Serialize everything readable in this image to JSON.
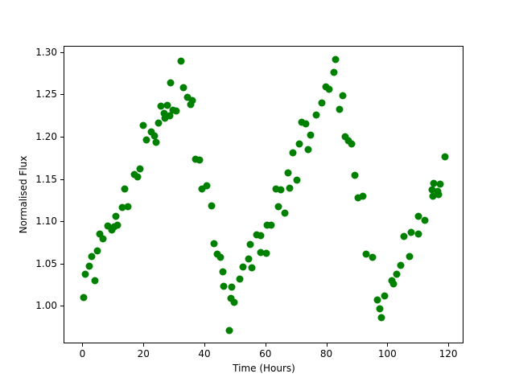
{
  "chart_data": {
    "type": "scatter",
    "title": "",
    "xlabel": "Time (Hours)",
    "ylabel": "Normalised Flux",
    "xlim": [
      -6.2,
      125.0
    ],
    "ylim": [
      0.9555,
      1.3075
    ],
    "xticks": [
      0,
      20,
      40,
      60,
      80,
      100,
      120
    ],
    "yticks": [
      1.0,
      1.05,
      1.1,
      1.15,
      1.2,
      1.25,
      1.3
    ],
    "ytick_decimals": 2,
    "grid": false,
    "legend": null,
    "marker": "circle",
    "marker_color": "#008000",
    "marker_diameter_px": 9,
    "background_color": "#ffffff",
    "spine_color": "#000000",
    "points": [
      [
        0.1,
        1.011
      ],
      [
        0.6,
        1.038
      ],
      [
        1.9,
        1.048
      ],
      [
        2.7,
        1.059
      ],
      [
        3.9,
        1.031
      ],
      [
        4.7,
        1.066
      ],
      [
        5.4,
        1.086
      ],
      [
        6.5,
        1.08
      ],
      [
        8.0,
        1.095
      ],
      [
        9.3,
        1.091
      ],
      [
        10.2,
        1.094
      ],
      [
        10.7,
        1.107
      ],
      [
        11.1,
        1.096
      ],
      [
        12.9,
        1.117
      ],
      [
        13.7,
        1.139
      ],
      [
        14.6,
        1.118
      ],
      [
        16.8,
        1.156
      ],
      [
        17.8,
        1.153
      ],
      [
        18.6,
        1.163
      ],
      [
        19.8,
        1.214
      ],
      [
        20.7,
        1.197
      ],
      [
        22.4,
        1.207
      ],
      [
        23.3,
        1.202
      ],
      [
        23.8,
        1.194
      ],
      [
        24.7,
        1.217
      ],
      [
        25.5,
        1.237
      ],
      [
        26.5,
        1.229
      ],
      [
        26.7,
        1.223
      ],
      [
        27.7,
        1.238
      ],
      [
        28.3,
        1.226
      ],
      [
        28.7,
        1.265
      ],
      [
        29.5,
        1.232
      ],
      [
        30.5,
        1.231
      ],
      [
        32.1,
        1.29
      ],
      [
        32.9,
        1.259
      ],
      [
        34.2,
        1.248
      ],
      [
        35.2,
        1.239
      ],
      [
        35.9,
        1.244
      ],
      [
        36.7,
        1.174
      ],
      [
        38.2,
        1.173
      ],
      [
        38.9,
        1.139
      ],
      [
        40.6,
        1.143
      ],
      [
        42.1,
        1.119
      ],
      [
        42.8,
        1.074
      ],
      [
        44.0,
        1.062
      ],
      [
        44.9,
        1.058
      ],
      [
        45.9,
        1.041
      ],
      [
        46.0,
        1.024
      ],
      [
        47.9,
        0.972
      ],
      [
        48.4,
        1.01
      ],
      [
        48.8,
        1.023
      ],
      [
        49.5,
        1.005
      ],
      [
        51.3,
        1.033
      ],
      [
        52.3,
        1.047
      ],
      [
        54.2,
        1.056
      ],
      [
        54.9,
        1.073
      ],
      [
        55.4,
        1.046
      ],
      [
        56.8,
        1.085
      ],
      [
        58.2,
        1.064
      ],
      [
        58.3,
        1.084
      ],
      [
        60.0,
        1.063
      ],
      [
        60.4,
        1.096
      ],
      [
        61.7,
        1.096
      ],
      [
        63.1,
        1.139
      ],
      [
        64.0,
        1.118
      ],
      [
        64.8,
        1.138
      ],
      [
        66.2,
        1.111
      ],
      [
        67.1,
        1.158
      ],
      [
        67.8,
        1.14
      ],
      [
        68.8,
        1.182
      ],
      [
        70.0,
        1.15
      ],
      [
        71.0,
        1.192
      ],
      [
        71.6,
        1.218
      ],
      [
        73.0,
        1.216
      ],
      [
        73.7,
        1.186
      ],
      [
        74.7,
        1.203
      ],
      [
        76.3,
        1.227
      ],
      [
        78.2,
        1.241
      ],
      [
        79.7,
        1.26
      ],
      [
        80.7,
        1.257
      ],
      [
        82.3,
        1.277
      ],
      [
        82.7,
        1.292
      ],
      [
        84.1,
        1.233
      ],
      [
        85.1,
        1.249
      ],
      [
        85.8,
        1.201
      ],
      [
        86.9,
        1.196
      ],
      [
        88.1,
        1.192
      ],
      [
        89.1,
        1.155
      ],
      [
        90.2,
        1.129
      ],
      [
        91.7,
        1.131
      ],
      [
        92.8,
        1.062
      ],
      [
        94.8,
        1.058
      ],
      [
        96.5,
        1.008
      ],
      [
        97.2,
        0.997
      ],
      [
        97.9,
        0.987
      ],
      [
        98.9,
        1.013
      ],
      [
        101.2,
        1.031
      ],
      [
        101.9,
        1.027
      ],
      [
        102.7,
        1.038
      ],
      [
        104.1,
        1.049
      ],
      [
        105.3,
        1.083
      ],
      [
        107.1,
        1.059
      ],
      [
        107.7,
        1.088
      ],
      [
        109.9,
        1.107
      ],
      [
        110.0,
        1.086
      ],
      [
        112.0,
        1.102
      ],
      [
        114.5,
        1.138
      ],
      [
        114.6,
        1.131
      ],
      [
        115.1,
        1.146
      ],
      [
        116.4,
        1.136
      ],
      [
        116.6,
        1.132
      ],
      [
        117.1,
        1.145
      ],
      [
        118.6,
        1.177
      ]
    ]
  }
}
